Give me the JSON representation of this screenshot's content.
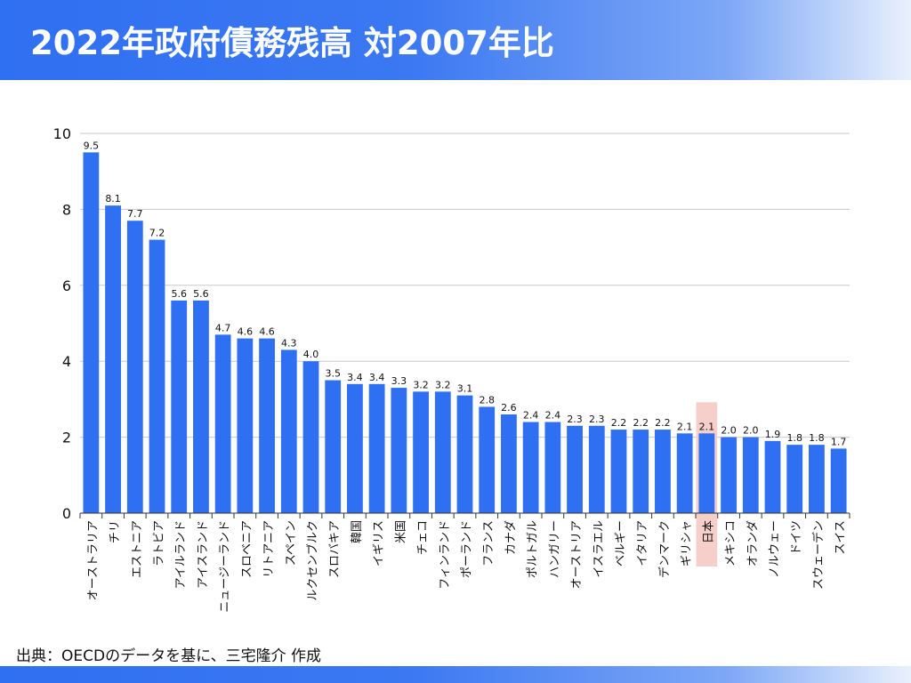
{
  "title": "2022年政府債務残高 対2007年比",
  "source": "出典：OECDのデータを基に、三宅隆介 作成",
  "colors": {
    "bar": "#2f6ff1",
    "highlight": "#f6cfcb",
    "grid": "#c8c8c8",
    "axis": "#333333",
    "header_gradient_start": "#2f6ff1",
    "header_gradient_end": "#eaf1fd"
  },
  "chart_data": {
    "type": "bar",
    "title": "",
    "xlabel": "",
    "ylabel": "",
    "ylim": [
      0,
      10
    ],
    "yticks": [
      "0",
      "2",
      "4",
      "6",
      "8",
      "10"
    ],
    "grid": true,
    "highlight_category": "日本",
    "categories": [
      "オーストラリア",
      "チリ",
      "エストニア",
      "ラトビア",
      "アイルランド",
      "アイスランド",
      "ニュージーランド",
      "スロベニア",
      "リトアニア",
      "スペイン",
      "ルクセンブルク",
      "スロバキア",
      "韓国",
      "イギリス",
      "米国",
      "チェコ",
      "フィンランド",
      "ポーランド",
      "フランス",
      "カナダ",
      "ポルトガル",
      "ハンガリー",
      "オーストリア",
      "イスラエル",
      "ベルギー",
      "イタリア",
      "デンマーク",
      "ギリシャ",
      "日本",
      "メキシコ",
      "オランダ",
      "ノルウェー",
      "ドイツ",
      "スウェーデン",
      "スイス"
    ],
    "values": [
      9.5,
      8.1,
      7.7,
      7.2,
      5.6,
      5.6,
      4.7,
      4.6,
      4.6,
      4.3,
      4.0,
      3.5,
      3.4,
      3.4,
      3.3,
      3.2,
      3.2,
      3.1,
      2.8,
      2.6,
      2.4,
      2.4,
      2.3,
      2.3,
      2.2,
      2.2,
      2.2,
      2.1,
      2.1,
      2.0,
      2.0,
      1.9,
      1.8,
      1.8,
      1.7
    ],
    "labels": [
      "9.5",
      "8.1",
      "7.7",
      "7.2",
      "5.6",
      "5.6",
      "4.7",
      "4.6",
      "4.6",
      "4.3",
      "4.0",
      "3.5",
      "3.4",
      "3.4",
      "3.3",
      "3.2",
      "3.2",
      "3.1",
      "2.8",
      "2.6",
      "2.4",
      "2.4",
      "2.3",
      "2.3",
      "2.2",
      "2.2",
      "2.2",
      "2.1",
      "2.1",
      "2.0",
      "2.0",
      "1.9",
      "1.8",
      "1.8",
      "1.7"
    ]
  }
}
